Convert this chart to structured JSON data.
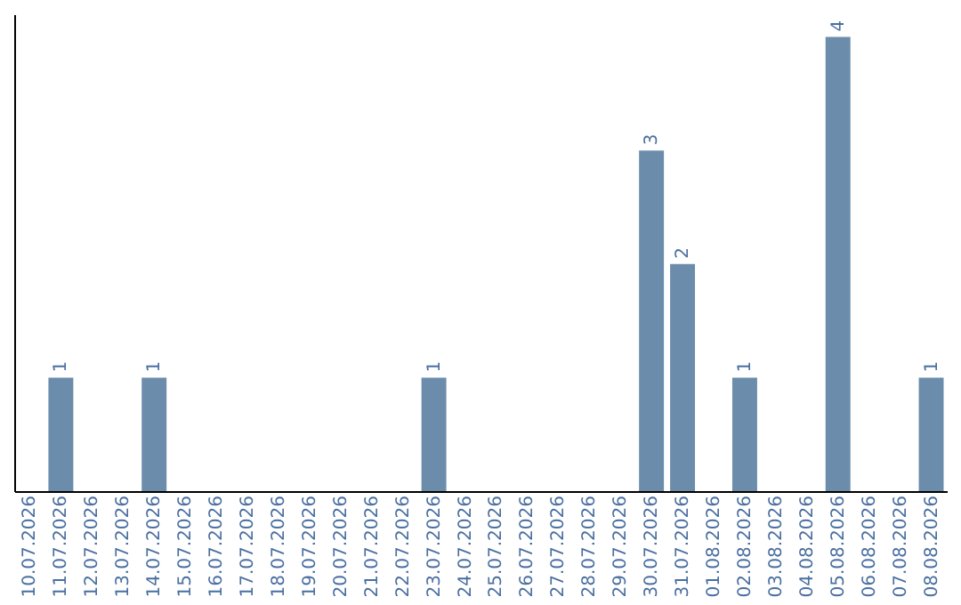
{
  "chart_data": {
    "type": "bar",
    "categories": [
      "10.07.2026",
      "11.07.2026",
      "12.07.2026",
      "13.07.2026",
      "14.07.2026",
      "15.07.2026",
      "16.07.2026",
      "17.07.2026",
      "18.07.2026",
      "19.07.2026",
      "20.07.2026",
      "21.07.2026",
      "22.07.2026",
      "23.07.2026",
      "24.07.2026",
      "25.07.2026",
      "26.07.2026",
      "27.07.2026",
      "28.07.2026",
      "29.07.2026",
      "30.07.2026",
      "31.07.2026",
      "01.08.2026",
      "02.08.2026",
      "03.08.2026",
      "04.08.2026",
      "05.08.2026",
      "06.08.2026",
      "07.08.2026",
      "08.08.2026"
    ],
    "values": [
      null,
      1,
      null,
      null,
      1,
      null,
      null,
      null,
      null,
      null,
      null,
      null,
      null,
      1,
      null,
      null,
      null,
      null,
      null,
      null,
      3,
      2,
      null,
      1,
      null,
      null,
      4,
      null,
      null,
      1
    ],
    "color": "#6b8cab",
    "ylim": [
      0,
      4.2
    ],
    "data_labels": true,
    "tick_labels": "x",
    "grid": false
  }
}
